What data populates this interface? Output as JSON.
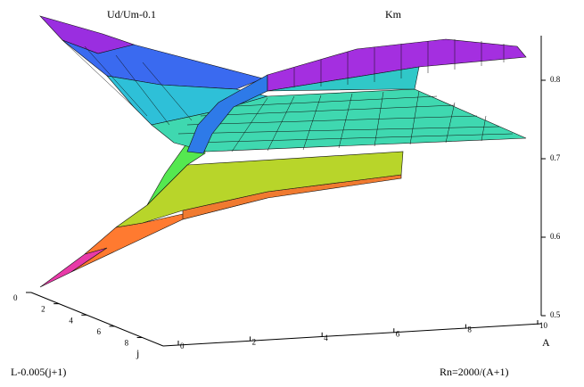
{
  "chart_data": {
    "type": "surface3d",
    "annotations": [
      "Ud/Um-0.1",
      "Km",
      "L-0.005(j+1)",
      "Rn=2000/(A+1)"
    ],
    "ylabel": "j",
    "xlabel": "A",
    "ylim": [
      0,
      9.5
    ],
    "yticks": [
      0,
      2,
      4,
      6,
      8
    ],
    "xlim": [
      0,
      10
    ],
    "xticks": [
      0,
      2,
      4,
      6,
      8,
      10
    ],
    "zlim": [
      0.5,
      0.85
    ],
    "zticks": [
      0.5,
      0.6,
      0.7,
      0.8
    ]
  }
}
